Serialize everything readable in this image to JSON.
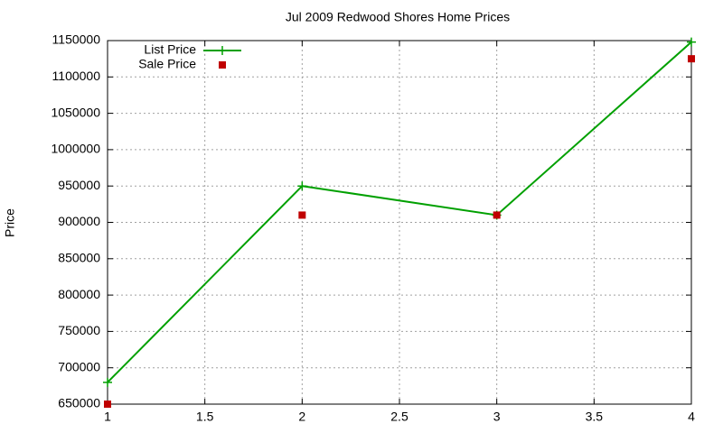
{
  "chart_data": {
    "type": "line",
    "title": "Jul 2009 Redwood Shores Home Prices",
    "y_label": "Price",
    "x": [
      1,
      2,
      3,
      4
    ],
    "series": [
      {
        "name": "List Price",
        "color": "#00a000",
        "style": "linespoints",
        "marker": "plus",
        "values": [
          680000,
          950000,
          910000,
          1148000
        ]
      },
      {
        "name": "Sale Price",
        "color": "#c00000",
        "style": "points",
        "marker": "square",
        "values": [
          650000,
          910000,
          910000,
          1125000
        ]
      }
    ],
    "xlim": [
      1,
      4
    ],
    "xticks": [
      1,
      1.5,
      2,
      2.5,
      3,
      3.5,
      4
    ],
    "ylim": [
      650000,
      1150000
    ],
    "yticks": [
      650000,
      700000,
      750000,
      800000,
      850000,
      900000,
      950000,
      1000000,
      1050000,
      1100000,
      1150000
    ],
    "grid": true,
    "legend": "top-left"
  }
}
